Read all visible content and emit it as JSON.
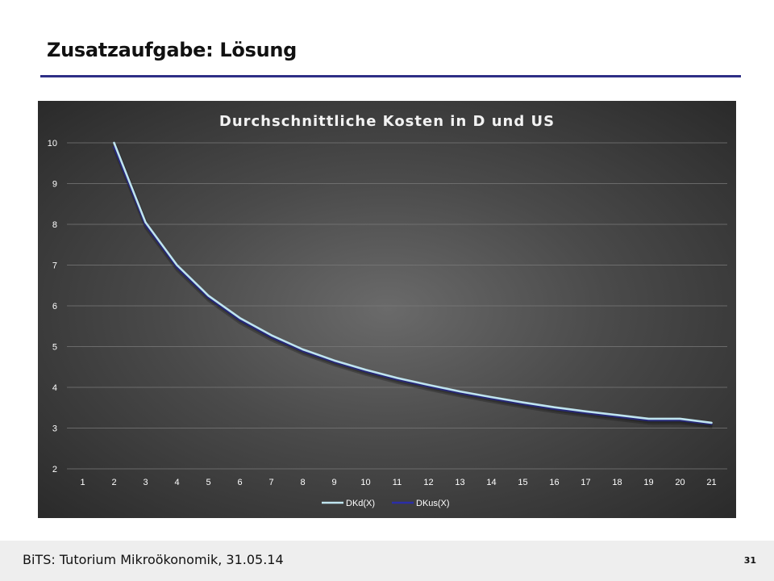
{
  "slide": {
    "title": "Zusatzaufgabe: Lösung",
    "footer": "BiTS: Tutorium Mikroökonomik, 31.05.14",
    "page_number": "31"
  },
  "colors": {
    "title_rule": "#2e2f86",
    "series_dkd": "#bfe4ef",
    "series_dkus": "#2b2ea8"
  },
  "chart_data": {
    "type": "line",
    "title": "Durchschnittliche Kosten in D und US",
    "xlabel": "",
    "ylabel": "",
    "categories": [
      "1",
      "2",
      "3",
      "4",
      "5",
      "6",
      "7",
      "8",
      "9",
      "10",
      "11",
      "12",
      "13",
      "14",
      "15",
      "16",
      "17",
      "18",
      "19",
      "20",
      "21"
    ],
    "ylim": [
      2,
      10
    ],
    "yticks": [
      2,
      3,
      4,
      5,
      6,
      7,
      8,
      9,
      10
    ],
    "grid": true,
    "legend": "bottom",
    "series": [
      {
        "name": "DKd(X)",
        "color": "#bfe4ef",
        "values": [
          null,
          10.0,
          8.05,
          7.0,
          6.25,
          5.7,
          5.28,
          4.93,
          4.66,
          4.43,
          4.23,
          4.06,
          3.9,
          3.76,
          3.63,
          3.51,
          3.41,
          3.32,
          3.23,
          3.23,
          3.13
        ]
      },
      {
        "name": "DKus(X)",
        "color": "#2b2ea8",
        "values": [
          null,
          9.9,
          7.98,
          6.94,
          6.2,
          5.65,
          5.23,
          4.89,
          4.62,
          4.39,
          4.19,
          4.02,
          3.86,
          3.72,
          3.59,
          3.47,
          3.37,
          3.28,
          3.19,
          3.19,
          3.1
        ]
      }
    ]
  }
}
